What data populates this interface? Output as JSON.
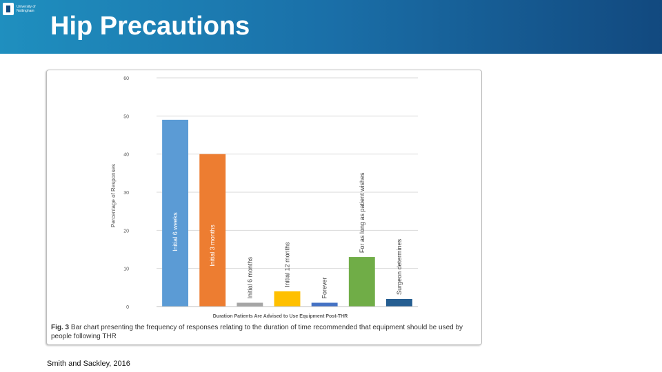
{
  "slide": {
    "title": "Hip Precautions",
    "logo_text": "University of Nottingham",
    "source": "Smith and Sackley, 2016"
  },
  "figure": {
    "caption_label": "Fig. 3",
    "caption_text": "Bar chart presenting the frequency of responses relating to the duration of time recommended that equipment should be used by people following THR"
  },
  "chart_data": {
    "type": "bar",
    "categories": [
      "Initial 6 weeks",
      "Initial 3 months",
      "Initial 6 months",
      "Initial 12 months",
      "Forever",
      "For as long as patient wishes",
      "Surgeon determines"
    ],
    "values": [
      49,
      40,
      1,
      4,
      1,
      13,
      2
    ],
    "colors": [
      "#5b9bd5",
      "#ed7d31",
      "#a5a5a5",
      "#ffc000",
      "#4472c4",
      "#70ad47",
      "#255e91"
    ],
    "xlabel": "Duration Patients Are Advised to Use Equipment Post-THR",
    "ylabel": "Percentage of Responses",
    "ylim": [
      0,
      60
    ],
    "yticks": [
      0,
      10,
      20,
      30,
      40,
      50,
      60
    ],
    "grid": true,
    "legend": "none"
  }
}
